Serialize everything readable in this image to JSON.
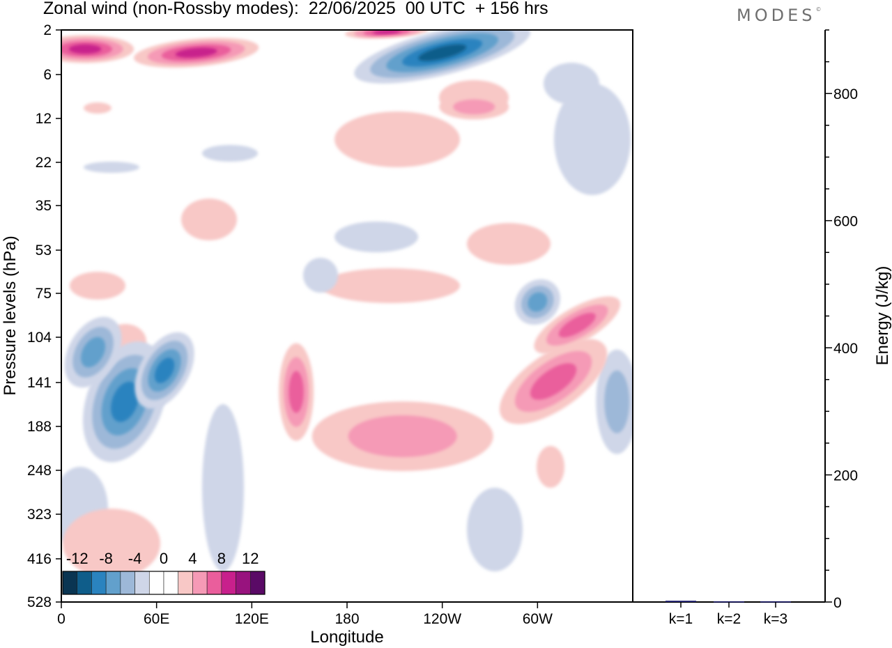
{
  "header": {
    "title": "Zonal wind (non-Rossby modes):  22/06/2025  00 UTC  + 156 hrs",
    "logo": "MODES"
  },
  "chart_data": [
    {
      "type": "heatmap",
      "title": "Zonal wind (non-Rossby modes):  22/06/2025  00 UTC  + 156 hrs",
      "xlabel": "Longitude",
      "ylabel": "Pressure levels (hPa)",
      "x_ticks": [
        "0",
        "60E",
        "120E",
        "180",
        "120W",
        "60W"
      ],
      "x_tick_values": [
        0,
        60,
        120,
        180,
        240,
        300
      ],
      "xlim": [
        0,
        360
      ],
      "y_ticks": [
        "2",
        "6",
        "12",
        "22",
        "35",
        "53",
        "75",
        "104",
        "141",
        "188",
        "248",
        "323",
        "416",
        "528"
      ],
      "y_scale": "log",
      "colorbar": {
        "labels": [
          "-12",
          "-8",
          "-4",
          "0",
          "4",
          "8",
          "12"
        ],
        "label_values": [
          -12,
          -8,
          -4,
          0,
          4,
          8,
          12
        ],
        "bins": [
          -14,
          -12,
          -10,
          -8,
          -6,
          -4,
          -2,
          0,
          2,
          4,
          6,
          8,
          10,
          12,
          14
        ],
        "colors": [
          "#0a3552",
          "#0f5d8a",
          "#2a83bf",
          "#62a0cc",
          "#9db8d8",
          "#cfd6e8",
          "#ffffff",
          "#ffffff",
          "#f8c8c6",
          "#f59ab6",
          "#ea5e9c",
          "#c8208c",
          "#98137e",
          "#5a0a66"
        ]
      },
      "features": [
        {
          "label": "positive",
          "lon": 15,
          "p": 3.2,
          "value": 8
        },
        {
          "label": "positive",
          "lon": 85,
          "p": 3.5,
          "value": 8
        },
        {
          "label": "positive",
          "lon": 205,
          "p": 2.1,
          "value": 9
        },
        {
          "label": "negative",
          "lon": 240,
          "p": 3.5,
          "value": -10
        },
        {
          "label": "negative",
          "lon": 40,
          "p": 160,
          "value": -9
        },
        {
          "label": "negative",
          "lon": 65,
          "p": 130,
          "value": -9
        },
        {
          "label": "negative",
          "lon": 20,
          "p": 115,
          "value": -6
        },
        {
          "label": "negative",
          "lon": 300,
          "p": 80,
          "value": -7
        },
        {
          "label": "negative",
          "lon": 350,
          "p": 160,
          "value": -5
        },
        {
          "label": "positive",
          "lon": 148,
          "p": 150,
          "value": 7
        },
        {
          "label": "positive",
          "lon": 215,
          "p": 200,
          "value": 5
        },
        {
          "label": "positive",
          "lon": 310,
          "p": 140,
          "value": 6
        },
        {
          "label": "positive",
          "lon": 325,
          "p": 95,
          "value": 7
        },
        {
          "label": "positive",
          "lon": 260,
          "p": 10,
          "value": 4
        }
      ]
    },
    {
      "type": "bar",
      "ylabel": "Energy (J/kg)",
      "categories": [
        "k=1",
        "k=2",
        "k=3"
      ],
      "values": [
        2,
        1,
        1
      ],
      "ylim": [
        0,
        900
      ],
      "y_ticks": [
        0,
        200,
        400,
        600,
        800
      ],
      "bar_color": "#1c1c6e"
    }
  ]
}
